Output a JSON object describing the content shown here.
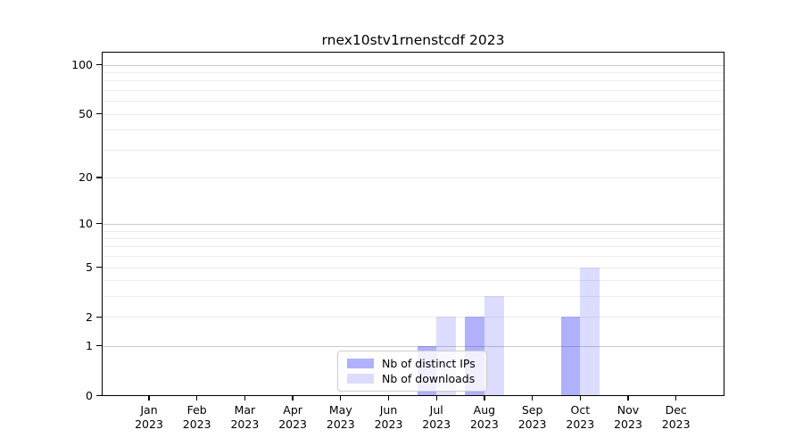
{
  "chart_data": {
    "type": "bar",
    "title": "rnex10stv1rnenstcdf 2023",
    "scale": "log1p",
    "categories": [
      "Jan",
      "Feb",
      "Mar",
      "Apr",
      "May",
      "Jun",
      "Jul",
      "Aug",
      "Sep",
      "Oct",
      "Nov",
      "Dec"
    ],
    "year_label": "2023",
    "series": [
      {
        "name": "Nb of distinct IPs",
        "color": "rgba(15,15,245,0.33)",
        "values": [
          0,
          0,
          0,
          0,
          0,
          0,
          1,
          2,
          0,
          2,
          0,
          0
        ]
      },
      {
        "name": "Nb of downloads",
        "color": "rgba(15,15,245,0.145)",
        "values": [
          0,
          0,
          0,
          0,
          0,
          0,
          2,
          3,
          0,
          5,
          0,
          0
        ]
      }
    ],
    "y_ticks": [
      0,
      1,
      2,
      5,
      10,
      20,
      50,
      100
    ],
    "ylim": [
      0,
      119
    ],
    "xlabel": "",
    "ylabel": "",
    "grid": "horizontal",
    "legend_position": "inside-bottom-center",
    "colors": {
      "grid_minor": "rgba(0,0,0,0.075)",
      "grid_major_power_of_ten": "rgba(0,0,0,0.2)",
      "axis": "#000000",
      "background": "#ffffff"
    }
  }
}
